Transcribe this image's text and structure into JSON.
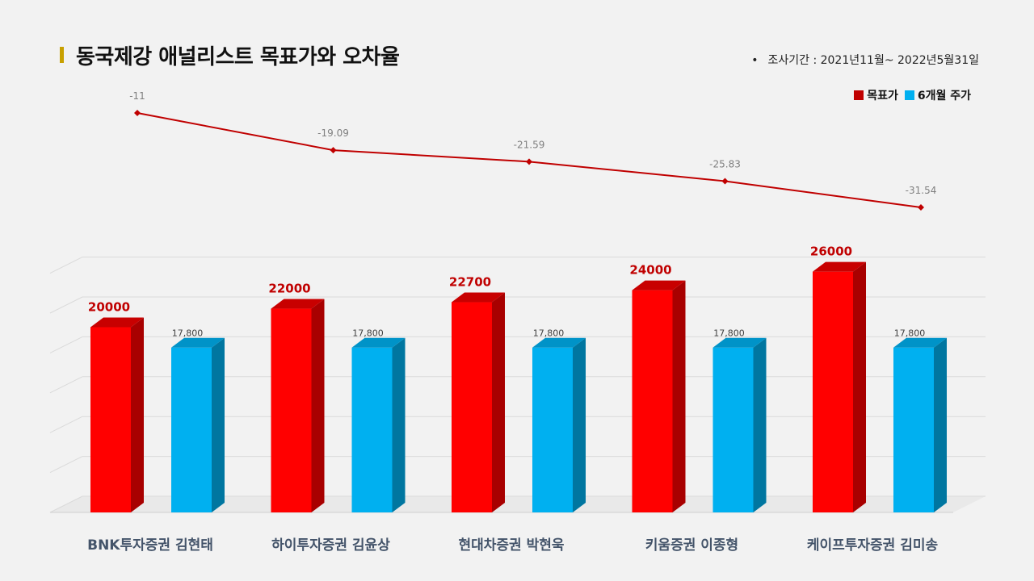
{
  "title": "동국제강 애널리스트 목표가와 오차율",
  "period": "조사기간 : 2021년11월~ 2022년5월31일",
  "period_bullet": "•",
  "colors": {
    "target": "#ff0000",
    "target_side": "#a80000",
    "target_top": "#c80000",
    "price": "#00b0f0",
    "price_side": "#0076a0",
    "price_top": "#0093c8",
    "line": "#c00000",
    "label_target": "#c00000",
    "accent": "#c8a000",
    "legend_target": "#c00000"
  },
  "legend": {
    "target": "목표가",
    "price": "6개월 주가"
  },
  "chart_data": [
    {
      "type": "line",
      "categories": [
        "BNK투자증권 김현태",
        "하이투자증권 김윤상",
        "현대차증권 박현욱",
        "키움증권 이종형",
        "케이프투자증권 김미송"
      ],
      "series": [
        {
          "values": [
            -11,
            -19.09,
            -21.59,
            -25.83,
            -31.54
          ]
        }
      ],
      "data_labels": [
        "-11",
        "-19.09",
        "-21.59",
        "-25.83",
        "-31.54"
      ]
    },
    {
      "type": "bar",
      "categories": [
        "BNK투자증권 김현태",
        "하이투자증권 김윤상",
        "현대차증권 박현욱",
        "키움증권 이종형",
        "케이프투자증권 김미송"
      ],
      "series": [
        {
          "name": "목표가",
          "values": [
            20000,
            22000,
            22700,
            24000,
            26000
          ],
          "data_labels": [
            "20000",
            "22000",
            "22700",
            "24000",
            "26000"
          ]
        },
        {
          "name": "6개월 주가",
          "values": [
            17800,
            17800,
            17800,
            17800,
            17800
          ],
          "data_labels": [
            "17,800",
            "17,800",
            "17,800",
            "17,800",
            "17,800"
          ]
        }
      ],
      "ylim": [
        0,
        28000
      ],
      "grid": true,
      "style": "3d"
    }
  ]
}
